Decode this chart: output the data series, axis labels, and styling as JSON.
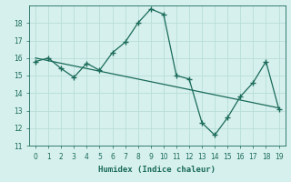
{
  "xlabel": "Humidex (Indice chaleur)",
  "x_data": [
    0,
    1,
    2,
    3,
    4,
    5,
    6,
    7,
    8,
    9,
    10,
    11,
    12,
    13,
    14,
    15,
    16,
    17,
    18,
    19
  ],
  "y_main": [
    15.8,
    16.0,
    15.4,
    14.9,
    15.7,
    15.3,
    16.3,
    16.9,
    18.0,
    18.8,
    18.5,
    15.0,
    14.8,
    12.3,
    11.6,
    12.6,
    13.8,
    14.6,
    15.8,
    13.1
  ],
  "y_trend": [
    16.0,
    15.85,
    15.7,
    15.55,
    15.4,
    15.25,
    15.1,
    14.95,
    14.8,
    14.65,
    14.5,
    14.35,
    14.2,
    14.05,
    13.9,
    13.75,
    13.6,
    13.45,
    13.3,
    13.15
  ],
  "line_color": "#1a6b5a",
  "marker_main": "+",
  "marker_size": 4,
  "bg_color": "#d6f0ed",
  "grid_color": "#b8ddd8",
  "ylim": [
    11,
    19
  ],
  "xlim": [
    -0.5,
    19.5
  ],
  "yticks": [
    11,
    12,
    13,
    14,
    15,
    16,
    17,
    18
  ],
  "xticks": [
    0,
    1,
    2,
    3,
    4,
    5,
    6,
    7,
    8,
    9,
    10,
    11,
    12,
    13,
    14,
    15,
    16,
    17,
    18,
    19
  ],
  "tick_fontsize": 5.5,
  "label_fontsize": 6.5
}
